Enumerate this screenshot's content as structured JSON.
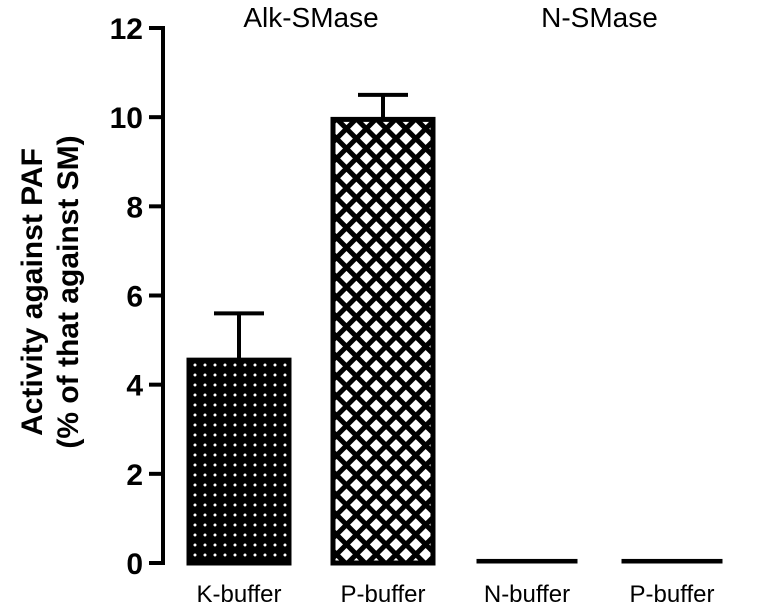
{
  "chart_data": {
    "type": "bar",
    "categories": [
      "K-buffer",
      "P-buffer",
      "N-buffer",
      "P-buffer"
    ],
    "groups": [
      {
        "label": "Alk-SMase",
        "categories": [
          0,
          1
        ]
      },
      {
        "label": "N-SMase",
        "categories": [
          2,
          3
        ]
      }
    ],
    "series": [
      {
        "values": [
          4.55,
          9.95,
          0.08,
          0.08
        ],
        "errors": [
          1.05,
          0.55,
          0,
          0
        ],
        "fill_patterns": [
          "dots",
          "crosshatch",
          "solid",
          "solid"
        ]
      }
    ],
    "ylabel_line1": "Activity against PAF",
    "ylabel_line2": "(% of that against SM)",
    "ylim": [
      0,
      12
    ],
    "yticks": [
      0,
      2,
      4,
      6,
      8,
      10,
      12
    ],
    "grid": false,
    "colors": {
      "bar_fill": "#000000",
      "pattern_light": "#ffffff",
      "axis": "#000000"
    }
  }
}
